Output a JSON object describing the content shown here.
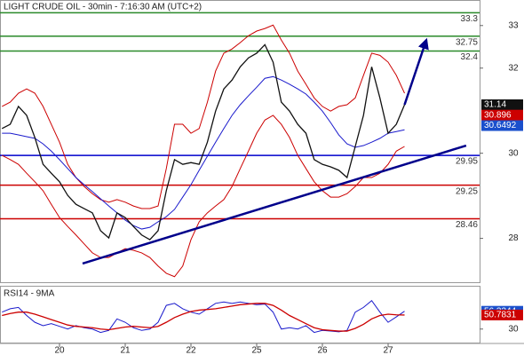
{
  "chart_data": [
    {
      "type": "line",
      "title": "LIGHT CRUDE OIL - 30min - 7:16:30 AM (UTC+2)",
      "categories": [
        null,
        null,
        null,
        null,
        null,
        null,
        null,
        "20",
        null,
        null,
        null,
        null,
        null,
        null,
        null,
        "21",
        null,
        null,
        null,
        null,
        null,
        null,
        null,
        "22",
        null,
        null,
        null,
        null,
        null,
        null,
        null,
        "25",
        null,
        null,
        null,
        null,
        null,
        null,
        null,
        "26",
        null,
        null,
        null,
        null,
        null,
        null,
        null,
        "27",
        null,
        null
      ],
      "ylim": [
        26.97,
        33.6
      ],
      "yticks": [
        28,
        30,
        32,
        33
      ],
      "series": [
        {
          "color": "#cc0000",
          "values": [
            31.1,
            31.2,
            31.41,
            31.51,
            31.41,
            31.1,
            30.68,
            30.26,
            29.74,
            29.43,
            29.22,
            29.05,
            28.91,
            28.85,
            28.91,
            28.85,
            28.76,
            28.7,
            28.7,
            28.76,
            29.64,
            30.68,
            30.68,
            30.47,
            30.58,
            31.2,
            31.93,
            32.35,
            32.45,
            32.6,
            32.76,
            32.87,
            32.93,
            33.01,
            32.66,
            32.35,
            31.93,
            31.62,
            31.3,
            31.1,
            30.99,
            31.1,
            31.14,
            31.3,
            31.83,
            32.35,
            32.3,
            32.14,
            31.83,
            31.41
          ]
        },
        {
          "color": "#cc0000",
          "values": [
            29.95,
            29.85,
            29.74,
            29.53,
            29.33,
            29.12,
            28.8,
            28.49,
            28.28,
            28.08,
            27.87,
            27.66,
            27.55,
            27.55,
            27.66,
            27.76,
            27.72,
            27.66,
            27.55,
            27.35,
            27.18,
            27.1,
            27.35,
            27.97,
            28.39,
            28.6,
            28.76,
            28.91,
            29.22,
            29.64,
            30.05,
            30.47,
            30.78,
            30.89,
            30.68,
            30.37,
            29.95,
            29.64,
            29.33,
            29.12,
            28.97,
            28.97,
            29.05,
            29.22,
            29.43,
            29.43,
            29.53,
            29.74,
            30.05,
            30.16
          ]
        },
        {
          "color": "#1a1acc",
          "values": [
            30.47,
            30.47,
            30.43,
            30.39,
            30.35,
            30.22,
            30.05,
            29.85,
            29.64,
            29.43,
            29.26,
            29.1,
            28.93,
            28.76,
            28.6,
            28.43,
            28.3,
            28.22,
            28.26,
            28.39,
            28.51,
            28.68,
            28.97,
            29.26,
            29.6,
            29.93,
            30.26,
            30.58,
            30.89,
            31.14,
            31.35,
            31.55,
            31.76,
            31.8,
            31.72,
            31.62,
            31.51,
            31.39,
            31.2,
            30.99,
            30.72,
            30.43,
            30.22,
            30.14,
            30.18,
            30.26,
            30.35,
            30.47,
            30.51,
            30.55
          ]
        },
        {
          "color": "#111111",
          "values": [
            30.58,
            30.68,
            31.1,
            30.89,
            30.37,
            29.74,
            29.53,
            29.33,
            29.01,
            28.8,
            28.7,
            28.6,
            28.18,
            28.01,
            28.6,
            28.49,
            28.28,
            28.08,
            27.97,
            28.18,
            29.12,
            29.85,
            29.74,
            29.78,
            29.74,
            30.26,
            30.99,
            31.51,
            31.72,
            32.03,
            32.24,
            32.35,
            32.55,
            32.14,
            31.2,
            30.99,
            30.68,
            30.47,
            29.85,
            29.74,
            29.68,
            29.6,
            29.43,
            30.16,
            30.89,
            32.03,
            31.3,
            30.47,
            30.68,
            31.14
          ]
        }
      ],
      "levels": [
        {
          "value": 33.3,
          "color": "#2a8a2a"
        },
        {
          "value": 32.75,
          "color": "#2a8a2a"
        },
        {
          "value": 32.4,
          "color": "#2a8a2a"
        },
        {
          "value": 29.95,
          "color": "#0000cc"
        },
        {
          "value": 29.25,
          "color": "#cc0000"
        },
        {
          "value": 28.46,
          "color": "#cc0000"
        }
      ],
      "trend_line": {
        "from": [
          9.81,
          27.41
        ],
        "to": [
          56.5,
          30.18
        ],
        "color": "#00008b"
      },
      "forecast_arrow": {
        "from": [
          49,
          31.14
        ],
        "to": [
          51.65,
          32.66
        ],
        "color": "#00008b"
      },
      "last_labels": [
        {
          "value": 31.14,
          "color": "#111111"
        },
        {
          "value": 30.896,
          "color": "#cc0000"
        },
        {
          "value": 30.6492,
          "color": "#1a4fcc"
        }
      ]
    },
    {
      "type": "line",
      "title": "RSI14 - 9MA",
      "ylim": [
        10,
        94
      ],
      "yticks": [
        30
      ],
      "series": [
        {
          "color": "#1a1acc",
          "values": [
            55,
            60,
            62,
            50,
            40,
            35,
            38,
            34,
            30,
            35,
            32,
            30,
            25,
            28,
            45,
            40,
            32,
            28,
            30,
            40,
            65,
            68,
            60,
            55,
            52,
            60,
            68,
            70,
            68,
            70,
            68,
            66,
            67,
            55,
            30,
            32,
            30,
            35,
            25,
            28,
            27,
            26,
            28,
            55,
            62,
            72,
            55,
            40,
            48,
            56.3344
          ]
        },
        {
          "color": "#cc0000",
          "values": [
            50,
            53,
            55,
            55,
            52,
            48,
            44,
            40,
            36,
            34,
            33,
            32,
            30,
            29,
            31,
            33,
            34,
            33,
            32,
            34,
            40,
            47,
            52,
            56,
            58,
            59,
            60,
            62,
            64,
            66,
            67,
            68,
            68,
            65,
            58,
            50,
            44,
            38,
            32,
            29,
            28,
            27,
            27,
            31,
            37,
            45,
            50,
            52,
            51,
            50.7831
          ]
        }
      ],
      "last_labels": [
        {
          "value": 56.3344,
          "color": "#1a4fcc"
        },
        {
          "value": 50.7831,
          "color": "#cc0000"
        }
      ]
    }
  ]
}
